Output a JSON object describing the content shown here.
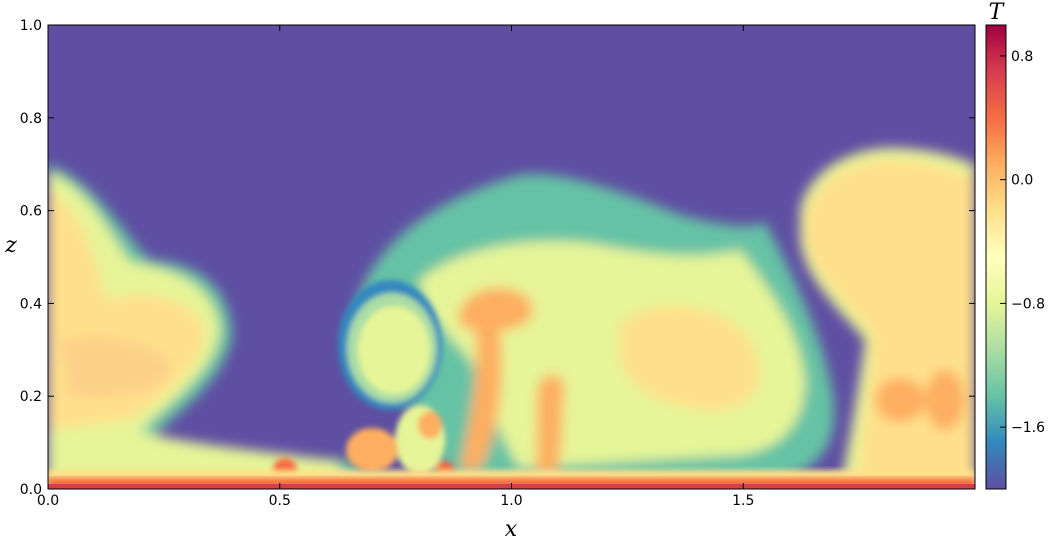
{
  "chart_data": {
    "type": "heatmap",
    "title": "",
    "xlabel": "x",
    "ylabel": "z",
    "xlim": [
      0.0,
      2.0
    ],
    "ylim": [
      0.0,
      1.0
    ],
    "xticks": [
      0.0,
      0.5,
      1.0,
      1.5
    ],
    "xtick_labels": [
      "0.0",
      "0.5",
      "1.0",
      "1.5"
    ],
    "yticks": [
      0.0,
      0.2,
      0.4,
      0.6,
      0.8,
      1.0
    ],
    "ytick_labels": [
      "0.0",
      "0.2",
      "0.4",
      "0.6",
      "0.8",
      "1.0"
    ],
    "grid": false,
    "colorbar": {
      "label": "T",
      "range": [
        -2.0,
        1.0
      ],
      "ticks": [
        0.8,
        0.0,
        -0.8,
        -1.6
      ],
      "tick_labels": [
        "0.8",
        "0.0",
        "−0.8",
        "−1.6"
      ],
      "colormap": "Spectral_r",
      "colors": [
        "#5e4fa2",
        "#3288bd",
        "#66c2a5",
        "#abdda4",
        "#e6f598",
        "#ffffbf",
        "#fee08b",
        "#fdae61",
        "#f46d43",
        "#d53e4f",
        "#9e0142"
      ]
    },
    "field": {
      "background_T": -2.0,
      "bottom_boundary_T": 0.8,
      "description_values": [
        {
          "region": "left plume",
          "x": [
            0.0,
            0.4
          ],
          "z": [
            0.0,
            0.7
          ],
          "T": -0.2
        },
        {
          "region": "central mushroom",
          "x": [
            0.65,
            1.55
          ],
          "z": [
            0.0,
            0.68
          ],
          "T": -0.4
        },
        {
          "region": "detached blob",
          "x": [
            0.66,
            0.83
          ],
          "z": [
            0.19,
            0.37
          ],
          "T": -0.6
        },
        {
          "region": "right plume",
          "x": [
            1.6,
            2.0
          ],
          "z": [
            0.0,
            0.74
          ],
          "T": -0.1
        }
      ]
    }
  }
}
